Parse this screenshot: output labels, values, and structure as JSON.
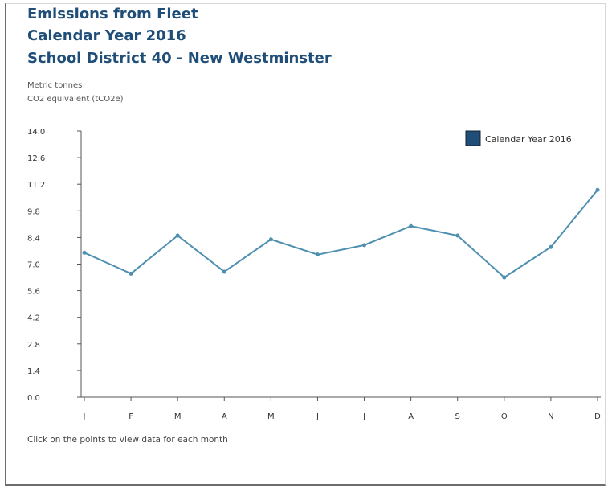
{
  "page": {
    "title_lines": [
      "Emissions from Fleet",
      "Calendar Year 2016",
      "School District 40 - New Westminster"
    ],
    "units_lines": [
      "Metric tonnes",
      "CO2 equivalent (tCO2e)"
    ],
    "footer": "Click on the points to view data for each month"
  },
  "colors": {
    "title": "#1f4e79",
    "line": "#4f8fb0",
    "legend_swatch": "#1f4e79",
    "axis": "#555555"
  },
  "chart_data": {
    "type": "line",
    "categories": [
      "J",
      "F",
      "M",
      "A",
      "M",
      "J",
      "J",
      "A",
      "S",
      "O",
      "N",
      "D"
    ],
    "series": [
      {
        "name": "Calendar Year 2016",
        "values": [
          7.6,
          6.5,
          8.5,
          6.6,
          8.3,
          7.5,
          8.0,
          9.0,
          8.5,
          6.3,
          7.9,
          10.9
        ]
      }
    ],
    "yticks": [
      "0.0",
      "1.4",
      "2.8",
      "4.2",
      "5.6",
      "7.0",
      "8.4",
      "9.8",
      "11.2",
      "12.6",
      "14.0"
    ],
    "ylim": [
      0,
      14
    ],
    "grid": false,
    "legend_position": "top-right"
  }
}
